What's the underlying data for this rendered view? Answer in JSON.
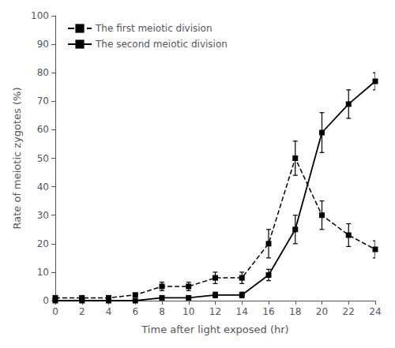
{
  "chart_data": {
    "type": "line",
    "x": [
      0,
      2,
      4,
      6,
      8,
      10,
      12,
      14,
      16,
      18,
      20,
      22,
      24
    ],
    "series": [
      {
        "name": "The first meiotic division",
        "color": "#000000",
        "line_style": "dashed",
        "marker": "square",
        "values": [
          1,
          1,
          1,
          2,
          5,
          5,
          8,
          8,
          20,
          50,
          30,
          23,
          18
        ],
        "errors": [
          0.5,
          0.5,
          0.5,
          0.5,
          1.5,
          1.5,
          2,
          2,
          5,
          6,
          5,
          4,
          3
        ]
      },
      {
        "name": "The second meiotic division",
        "color": "#000000",
        "line_style": "solid",
        "marker": "square",
        "values": [
          0,
          0,
          0,
          0,
          1,
          1,
          2,
          2,
          9,
          25,
          59,
          69,
          77
        ],
        "errors": [
          0,
          0,
          0,
          0,
          0.5,
          0.5,
          1,
          1,
          2,
          5,
          7,
          5,
          3
        ]
      }
    ],
    "xlabel": "Time after light exposed (hr)",
    "ylabel": "Rate of meiotic zygotes (%)",
    "xlim": [
      0,
      24
    ],
    "ylim": [
      0,
      100
    ],
    "xticks": [
      0,
      2,
      4,
      6,
      8,
      10,
      12,
      14,
      16,
      18,
      20,
      22,
      24
    ],
    "yticks": [
      0,
      10,
      20,
      30,
      40,
      50,
      60,
      70,
      80,
      90,
      100
    ],
    "grid": false,
    "legend": "upper left"
  }
}
